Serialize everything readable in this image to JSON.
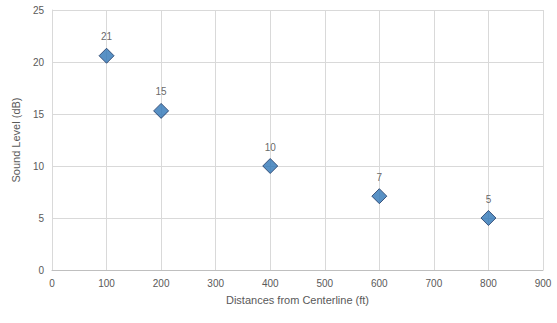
{
  "chart_data": {
    "type": "scatter",
    "x": [
      100,
      200,
      400,
      600,
      800
    ],
    "values": [
      20.6,
      15.3,
      10,
      7.1,
      5
    ],
    "value_labels": [
      "21",
      "15",
      "10",
      "7",
      "5"
    ],
    "data_labels": true,
    "xlabel": "Distances from Centerline (ft)",
    "ylabel": "Sound Level (dB)",
    "xlim": [
      0,
      900
    ],
    "xticks": [
      0,
      100,
      200,
      300,
      400,
      500,
      600,
      700,
      800,
      900
    ],
    "ylim": [
      0,
      25
    ],
    "yticks": [
      0,
      5,
      10,
      15,
      20,
      25
    ],
    "grid": true,
    "color": "#2e75b6",
    "marker": "diamond"
  }
}
